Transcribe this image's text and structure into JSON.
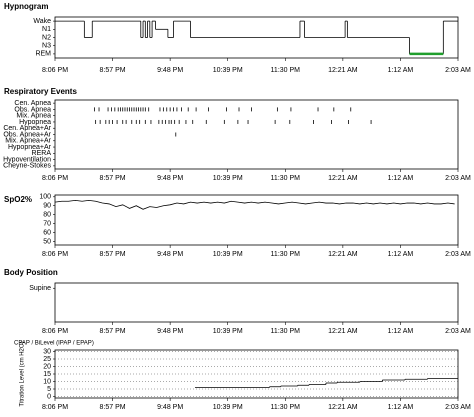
{
  "chart_data": [
    {
      "type": "step-line",
      "title": "Hypnogram",
      "xlim": [
        0,
        357
      ],
      "xticks": [
        {
          "value": 0,
          "label": "8:06 PM"
        },
        {
          "value": 51,
          "label": "8:57 PM"
        },
        {
          "value": 102,
          "label": "9:48 PM"
        },
        {
          "value": 153,
          "label": "10:39 PM"
        },
        {
          "value": 204,
          "label": "11:30 PM"
        },
        {
          "value": 255,
          "label": "12:21 AM"
        },
        {
          "value": 306,
          "label": "1:12 AM"
        },
        {
          "value": 357,
          "label": "2:03 AM"
        }
      ],
      "ylim": [
        -0.5,
        4.5
      ],
      "yticks": [
        {
          "value": 4,
          "label": "Wake"
        },
        {
          "value": 3,
          "label": "N1"
        },
        {
          "value": 2,
          "label": "N2"
        },
        {
          "value": 1,
          "label": "N3"
        },
        {
          "value": 0,
          "label": "REM"
        }
      ],
      "x": [
        0,
        26,
        33,
        76,
        78,
        80,
        82,
        84,
        86,
        89,
        100,
        105,
        120,
        217,
        221,
        257,
        259,
        314,
        344
      ],
      "series": [
        {
          "color": "#000000",
          "values": [
            4,
            2,
            4,
            2,
            4,
            2,
            4,
            2,
            4,
            3,
            2,
            4,
            2,
            4,
            2,
            4,
            2,
            0,
            4
          ]
        },
        {
          "color": "#1f9e2c",
          "values": [
            null,
            null,
            null,
            null,
            null,
            null,
            null,
            null,
            null,
            null,
            null,
            null,
            null,
            null,
            null,
            null,
            null,
            0,
            null
          ]
        }
      ]
    },
    {
      "type": "event",
      "title": "Respiratory Events",
      "xlim": [
        0,
        357
      ],
      "xticks": [
        {
          "value": 0,
          "label": "8:06 PM"
        },
        {
          "value": 51,
          "label": "8:57 PM"
        },
        {
          "value": 102,
          "label": "9:48 PM"
        },
        {
          "value": 153,
          "label": "10:39 PM"
        },
        {
          "value": 204,
          "label": "11:30 PM"
        },
        {
          "value": 255,
          "label": "12:21 AM"
        },
        {
          "value": 306,
          "label": "1:12 AM"
        },
        {
          "value": 357,
          "label": "2:03 AM"
        }
      ],
      "ylim": [
        10.5,
        -0.5
      ],
      "yticks": [
        {
          "value": 0,
          "label": "Cen. Apnea"
        },
        {
          "value": 1,
          "label": "Obs. Apnea"
        },
        {
          "value": 2,
          "label": "Mix. Apnea"
        },
        {
          "value": 3,
          "label": "Hypopnea"
        },
        {
          "value": 4,
          "label": "Cen. Apnea+Ar"
        },
        {
          "value": 5,
          "label": "Obs. Apnea+Ar"
        },
        {
          "value": 6,
          "label": "Mix. Apnea+Ar"
        },
        {
          "value": 7,
          "label": "Hypopnea+Ar"
        },
        {
          "value": 8,
          "label": "RERA"
        },
        {
          "value": 9,
          "label": "Hypoventilation"
        },
        {
          "value": 10,
          "label": "Cheyne-Stokes"
        }
      ],
      "x": [
        35,
        39,
        47,
        50,
        53,
        56,
        58,
        60,
        62,
        64,
        66,
        68,
        70,
        72,
        74,
        76,
        78,
        80,
        83,
        93,
        96,
        99,
        102,
        105,
        108,
        112,
        118,
        125,
        136,
        152,
        163,
        174,
        197,
        209,
        233,
        247,
        262,
        36,
        40,
        45,
        48,
        51,
        55,
        60,
        63,
        68,
        72,
        75,
        80,
        85,
        92,
        95,
        98,
        101,
        103,
        106,
        110,
        116,
        122,
        134,
        150,
        162,
        171,
        195,
        208,
        229,
        245,
        260,
        280,
        107
      ],
      "values": [
        1,
        1,
        1,
        1,
        1,
        1,
        1,
        1,
        1,
        1,
        1,
        1,
        1,
        1,
        1,
        1,
        1,
        1,
        1,
        1,
        1,
        1,
        1,
        1,
        1,
        1,
        1,
        1,
        1,
        1,
        1,
        1,
        1,
        1,
        1,
        1,
        1,
        3,
        3,
        3,
        3,
        3,
        3,
        3,
        3,
        3,
        3,
        3,
        3,
        3,
        3,
        3,
        3,
        3,
        3,
        3,
        3,
        3,
        3,
        3,
        3,
        3,
        3,
        3,
        3,
        3,
        3,
        3,
        3,
        5
      ]
    },
    {
      "type": "line",
      "title": "SpO2%",
      "xlim": [
        0,
        357
      ],
      "xticks": [
        {
          "value": 0,
          "label": "8:06 PM"
        },
        {
          "value": 51,
          "label": "8:57 PM"
        },
        {
          "value": 102,
          "label": "9:48 PM"
        },
        {
          "value": 153,
          "label": "10:39 PM"
        },
        {
          "value": 204,
          "label": "11:30 PM"
        },
        {
          "value": 255,
          "label": "12:21 AM"
        },
        {
          "value": 306,
          "label": "1:12 AM"
        },
        {
          "value": 357,
          "label": "2:03 AM"
        }
      ],
      "ylim": [
        46,
        102
      ],
      "yticks": [
        100,
        90,
        80,
        70,
        60,
        50
      ],
      "x": [
        0,
        6,
        12,
        18,
        24,
        30,
        36,
        42,
        48,
        54,
        60,
        66,
        72,
        78,
        84,
        90,
        96,
        102,
        108,
        114,
        120,
        126,
        132,
        138,
        144,
        150,
        156,
        162,
        168,
        174,
        180,
        186,
        192,
        198,
        204,
        210,
        216,
        222,
        228,
        234,
        240,
        246,
        252,
        258,
        264,
        270,
        276,
        282,
        288,
        294,
        300,
        306,
        312,
        318,
        324,
        330,
        336,
        342,
        348,
        354
      ],
      "values": [
        94,
        95,
        95,
        96,
        95,
        96,
        95,
        93,
        92,
        89,
        91,
        87,
        90,
        86,
        89,
        88,
        90,
        91,
        93,
        92,
        94,
        93,
        94,
        93,
        94,
        93,
        95,
        94,
        93,
        94,
        93,
        94,
        93,
        92,
        93,
        94,
        93,
        92,
        93,
        94,
        93,
        93,
        92,
        93,
        93,
        92,
        93,
        92,
        93,
        92,
        93,
        92,
        93,
        93,
        92,
        93,
        92,
        92,
        93,
        92
      ],
      "color": "#000000"
    },
    {
      "type": "event",
      "title": "Body Position",
      "xlim": [
        0,
        357
      ],
      "xticks": [
        {
          "value": 0,
          "label": "8:06 PM"
        },
        {
          "value": 51,
          "label": "8:57 PM"
        },
        {
          "value": 102,
          "label": "9:48 PM"
        },
        {
          "value": 153,
          "label": "10:39 PM"
        },
        {
          "value": 204,
          "label": "11:30 PM"
        },
        {
          "value": 255,
          "label": "12:21 AM"
        },
        {
          "value": 306,
          "label": "1:12 AM"
        },
        {
          "value": 357,
          "label": "2:03 AM"
        }
      ],
      "ylim": [
        4.5,
        -0.7
      ],
      "yticks": [
        {
          "value": 0,
          "label": "Supine"
        }
      ]
    },
    {
      "type": "step-line",
      "title": "CPAP / BiLevel (IPAP / EPAP)",
      "ylabel": "Titration Level (cm H2O)",
      "xlim": [
        0,
        357
      ],
      "xticks": [
        {
          "value": 0,
          "label": "8:06 PM"
        },
        {
          "value": 51,
          "label": "8:57 PM"
        },
        {
          "value": 102,
          "label": "9:48 PM"
        },
        {
          "value": 153,
          "label": "10:39 PM"
        },
        {
          "value": 204,
          "label": "11:30 PM"
        },
        {
          "value": 255,
          "label": "12:21 AM"
        },
        {
          "value": 306,
          "label": "1:12 AM"
        },
        {
          "value": 357,
          "label": "2:03 AM"
        }
      ],
      "ylim": [
        -1,
        31
      ],
      "yticks": [
        30,
        25,
        20,
        15,
        10,
        5,
        0
      ],
      "grid": true,
      "x": [
        124,
        190,
        200,
        215,
        225,
        240,
        250,
        270,
        290,
        310,
        330
      ],
      "series": [
        {
          "color": "#000000",
          "values": [
            6,
            6.5,
            7,
            7.5,
            8,
            9,
            9.5,
            10,
            11,
            11.5,
            12
          ]
        }
      ]
    }
  ]
}
